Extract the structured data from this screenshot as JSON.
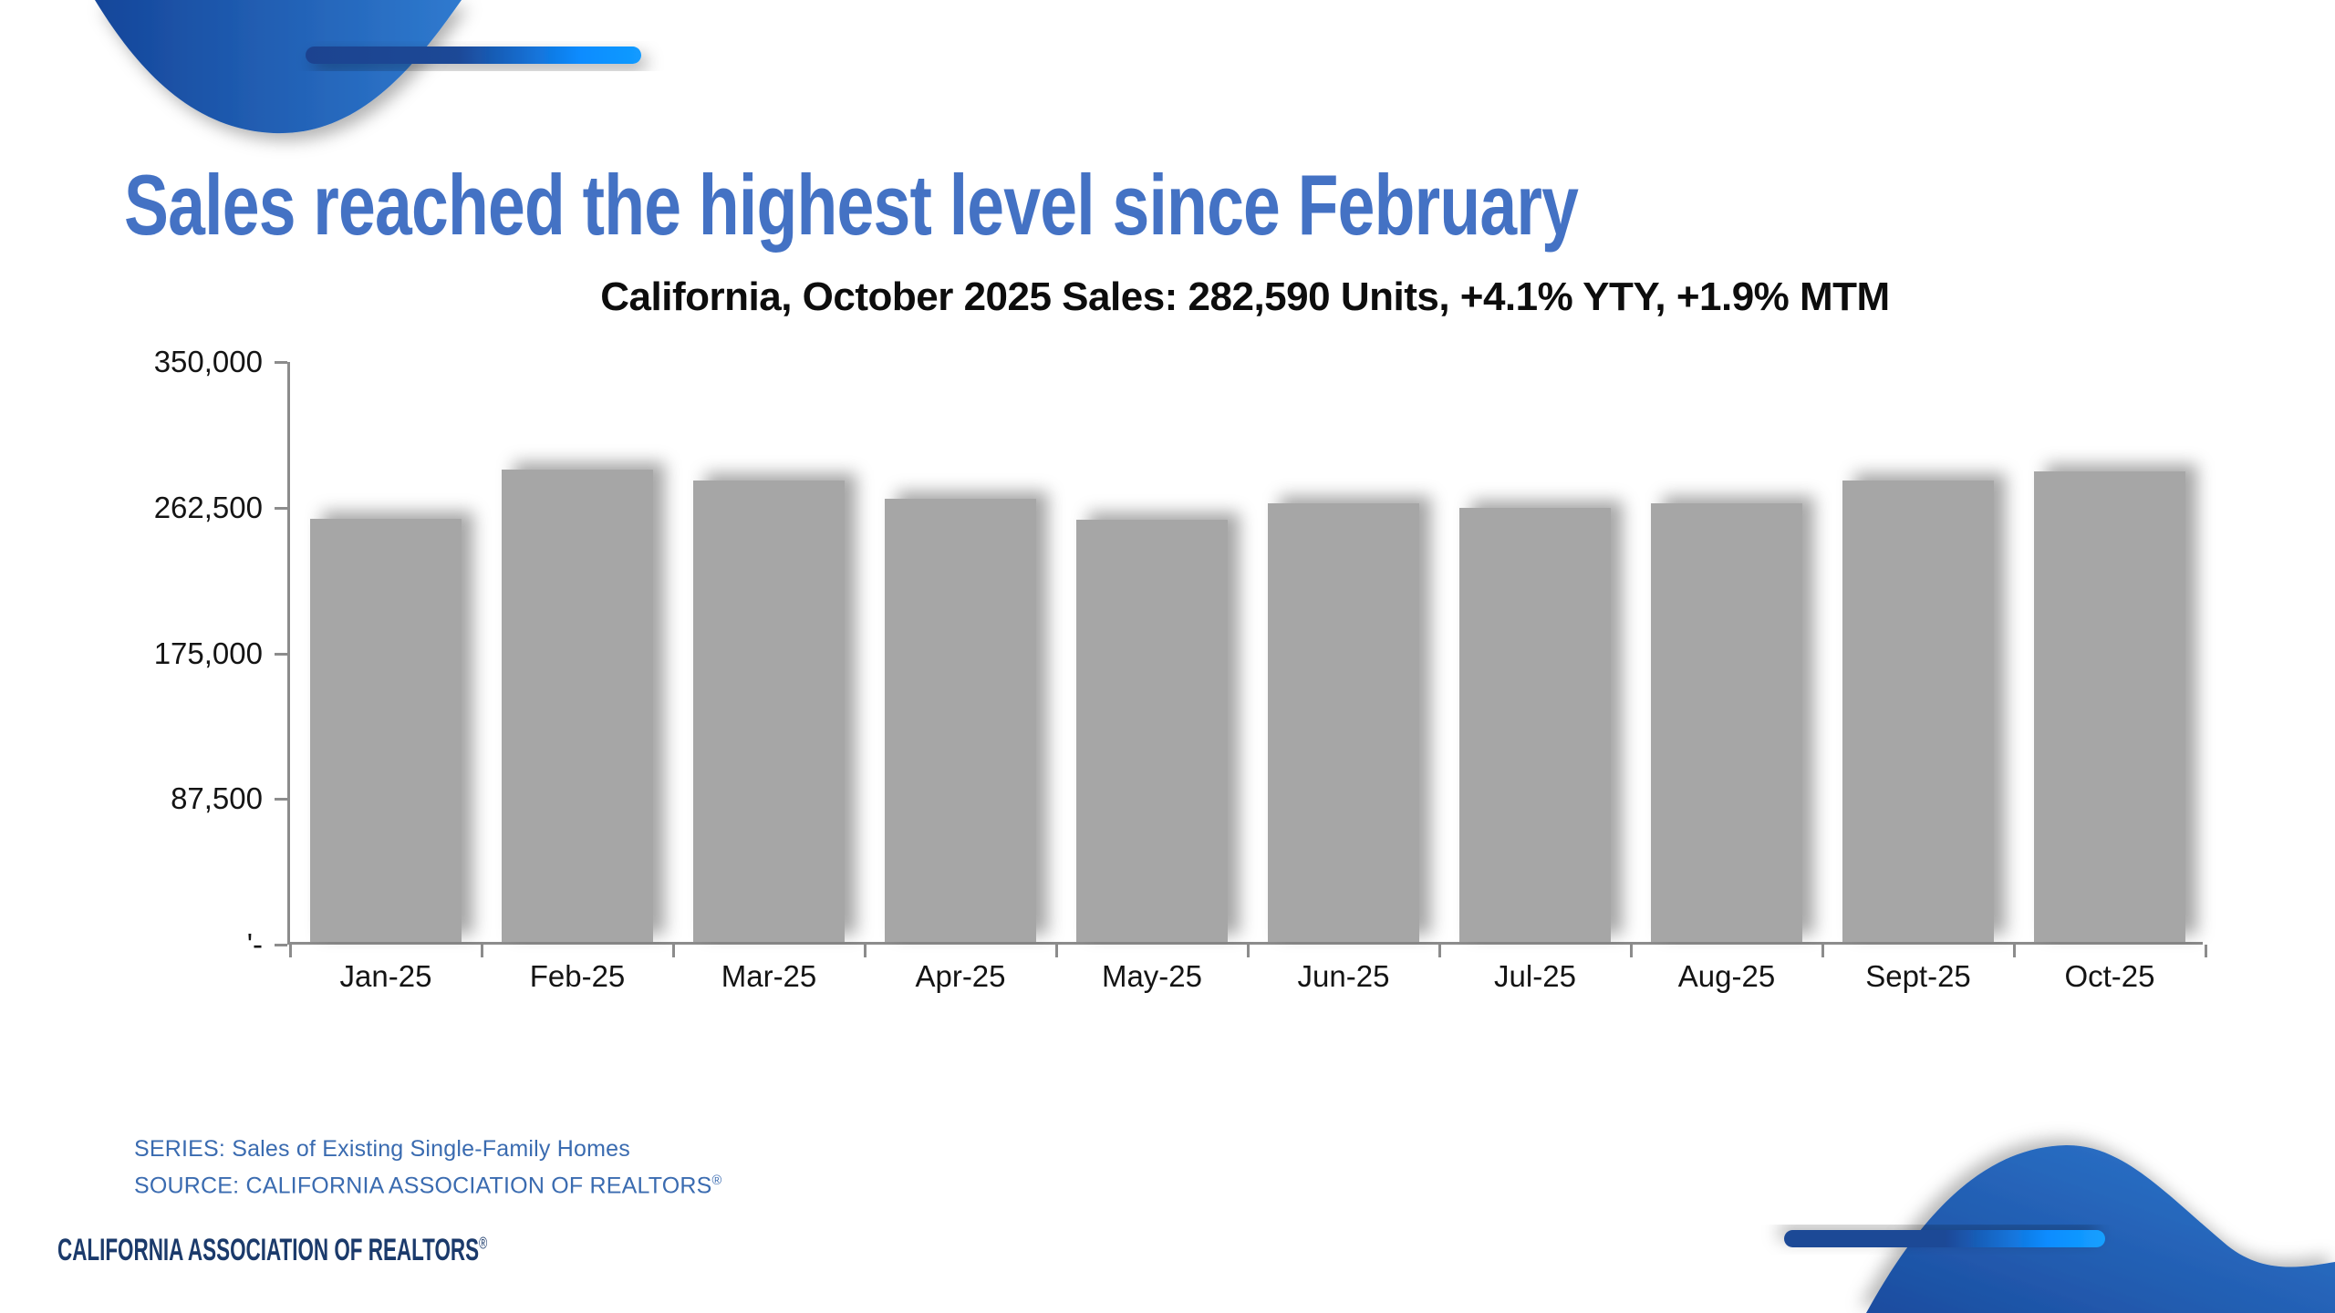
{
  "slide": {
    "title": "Sales reached the highest level since February",
    "background_color": "#FFFFFF",
    "accent_colors": {
      "title_blue": "#4472C4",
      "deco_dark_blue": "#17479B",
      "deco_mid_blue": "#2F7ACF",
      "deco_bright_blue": "#0D8CFF"
    }
  },
  "chart_data": {
    "type": "bar",
    "title": "California, October 2025 Sales: 282,590 Units, +4.1% YTY, +1.9% MTM",
    "categories": [
      "Jan-25",
      "Feb-25",
      "Mar-25",
      "Apr-25",
      "May-25",
      "Jun-25",
      "Jul-25",
      "Aug-25",
      "Sept-25",
      "Oct-25"
    ],
    "values": [
      254000,
      283500,
      277000,
      266000,
      253500,
      263500,
      261000,
      263500,
      277300,
      282590
    ],
    "ylim": [
      0,
      350000
    ],
    "y_ticks": [
      {
        "value": 350000,
        "label": "350,000"
      },
      {
        "value": 262500,
        "label": "262,500"
      },
      {
        "value": 175000,
        "label": "175,000"
      },
      {
        "value": 87500,
        "label": "87,500"
      },
      {
        "value": 0,
        "label": "'-"
      }
    ],
    "xlabel": "",
    "ylabel": "",
    "grid": false,
    "legend": false,
    "bar_color": "#A6A6A6",
    "axis_color": "#8C8C8C",
    "stated_october_value": "282,590"
  },
  "footer": {
    "series_line": "SERIES: Sales of Existing Single-Family Homes",
    "source_line": "SOURCE: CALIFORNIA ASSOCIATION OF REALTORS",
    "source_reg": "®",
    "text_color": "#3A6BB0"
  },
  "logo": {
    "text": "CALIFORNIA ASSOCIATION OF REALTORS",
    "reg": "®",
    "color": "#1B3A6B"
  }
}
